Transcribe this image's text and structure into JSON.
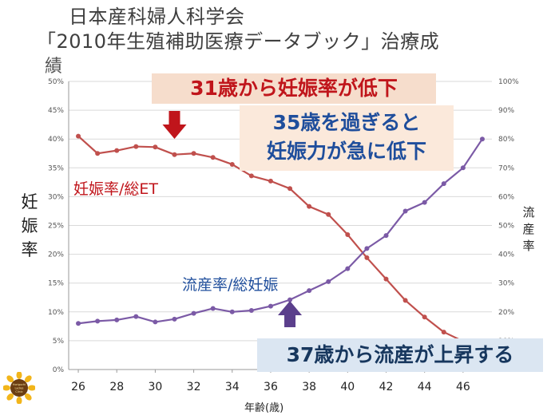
{
  "title": {
    "line1": "日本産科婦人科学会",
    "line2": "「2010年生殖補助医療データブック」治療成",
    "line3": "績"
  },
  "callouts": {
    "pregnancy_drop": "31歳から妊娠率が低下",
    "over35_line1": "35歳を過ぎると",
    "over35_line2": "妊娠力が急に低下",
    "miscarriage_rise": "37歳から流産が上昇する"
  },
  "series_labels": {
    "pregnancy": "妊娠率/総ET",
    "miscarriage": "流産率/総妊娠"
  },
  "axis_labels": {
    "left": [
      "妊",
      "娠",
      "率"
    ],
    "right": [
      "流",
      "産",
      "率"
    ],
    "x": "年齢(歳)"
  },
  "colors": {
    "pregnancy": "#c0504d",
    "miscarriage": "#7b5aa6",
    "arrow_red": "#c0151b",
    "arrow_purple": "#5b3f8c",
    "grid": "#d9d9d9"
  },
  "logo": {
    "text": "Horiguchi Ladies Clinic",
    "icon": "sunflower-logo"
  },
  "chart_data": {
    "type": "line",
    "x": [
      26,
      27,
      28,
      29,
      30,
      31,
      32,
      33,
      34,
      35,
      36,
      37,
      38,
      39,
      40,
      41,
      42,
      43,
      44,
      45,
      46,
      47
    ],
    "xticks": [
      26,
      28,
      30,
      32,
      34,
      36,
      38,
      40,
      42,
      44,
      46
    ],
    "xlim": [
      25.5,
      47.5
    ],
    "ylim_left": [
      0,
      50
    ],
    "ylim_right": [
      0,
      100
    ],
    "yticks_left": [
      "0%",
      "5%",
      "10%",
      "15%",
      "20%",
      "25%",
      "30%",
      "35%",
      "40%",
      "45%",
      "50%"
    ],
    "yticks_right": [
      "",
      "10%",
      "20%",
      "30%",
      "40%",
      "50%",
      "60%",
      "70%",
      "80%",
      "90%",
      "100%"
    ],
    "grid": true,
    "series": [
      {
        "name": "妊娠率/総ET",
        "axis": "left",
        "values": [
          40.5,
          37.5,
          38.0,
          38.7,
          38.6,
          37.3,
          37.5,
          36.8,
          35.6,
          33.6,
          32.7,
          31.4,
          28.3,
          26.9,
          23.4,
          19.4,
          15.7,
          12.0,
          9.1,
          6.5,
          4.9,
          null
        ]
      },
      {
        "name": "流産率/総妊娠",
        "axis": "right",
        "values": [
          16.0,
          16.8,
          17.2,
          18.4,
          16.5,
          17.5,
          19.5,
          21.2,
          20.0,
          20.5,
          22.0,
          24.2,
          27.4,
          30.5,
          35.0,
          42.0,
          46.5,
          55.0,
          58.0,
          64.5,
          70.0,
          80.0
        ]
      }
    ]
  }
}
